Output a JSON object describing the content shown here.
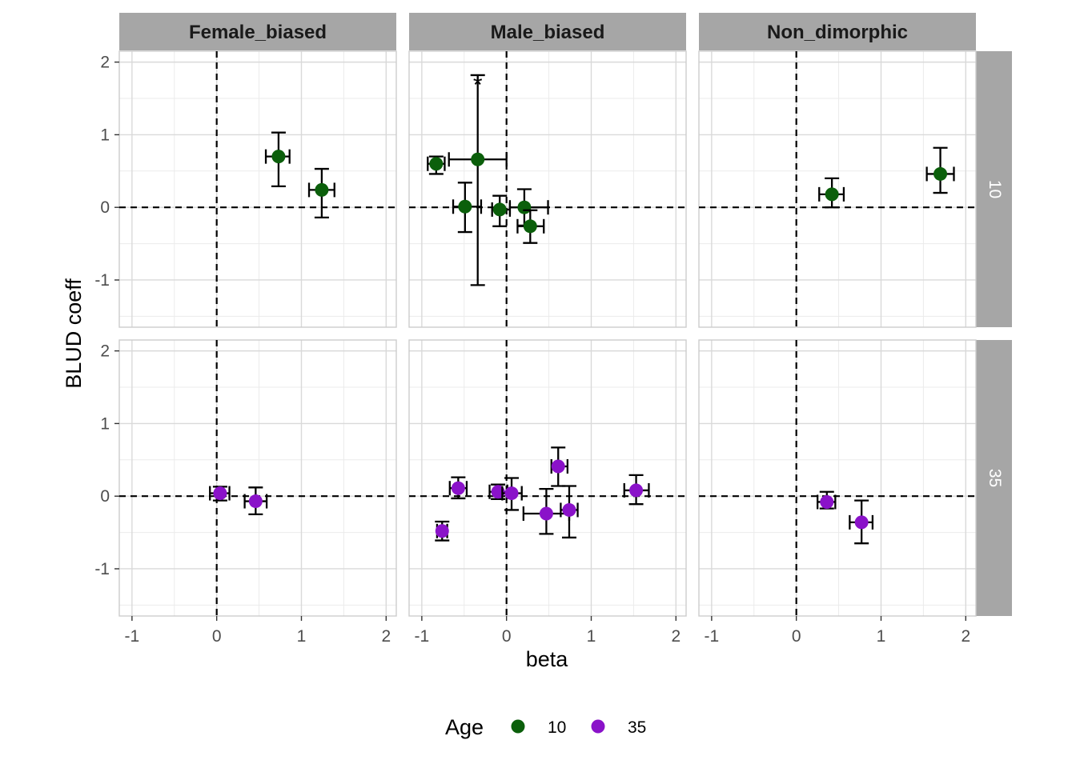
{
  "chart_data": {
    "type": "scatter",
    "xlabel": "beta",
    "ylabel": "BLUD coeff",
    "xlim": [
      -1.15,
      2.12
    ],
    "ylim": [
      -1.65,
      2.15
    ],
    "x_ticks": [
      -1,
      0,
      1,
      2
    ],
    "y_ticks": [
      -1,
      0,
      1,
      2
    ],
    "x_tick_labels": [
      "-1",
      "0",
      "1",
      "2"
    ],
    "y_tick_labels": [
      "-1",
      "0",
      "1",
      "2"
    ],
    "reference_lines": {
      "x": 0,
      "y": 0,
      "style": "dashed"
    },
    "grid": true,
    "columns": [
      "Female_biased",
      "Male_biased",
      "Non_dimorphic"
    ],
    "rows": [
      "10",
      "35"
    ],
    "legend": {
      "title": "Age",
      "position": "bottom",
      "entries": [
        {
          "label": "10",
          "color": "#0B5F0B"
        },
        {
          "label": "35",
          "color": "#8A12C9"
        }
      ]
    },
    "series": [
      {
        "name": "10",
        "color": "#0B5F0B"
      },
      {
        "name": "35",
        "color": "#8A12C9"
      }
    ],
    "points": [
      {
        "col": "Female_biased",
        "row": "10",
        "x": 0.73,
        "y": 0.7,
        "xlo": 0.58,
        "xhi": 0.86,
        "ylo": 0.29,
        "yhi": 1.03
      },
      {
        "col": "Female_biased",
        "row": "10",
        "x": 1.24,
        "y": 0.24,
        "xlo": 1.09,
        "xhi": 1.39,
        "ylo": -0.14,
        "yhi": 0.53
      },
      {
        "col": "Male_biased",
        "row": "10",
        "x": -0.83,
        "y": 0.6,
        "xlo": -0.93,
        "xhi": -0.73,
        "ylo": 0.46,
        "yhi": 0.7
      },
      {
        "col": "Male_biased",
        "row": "10",
        "x": -0.34,
        "y": 0.66,
        "xlo": -0.68,
        "xhi": 0.0,
        "ylo": -1.07,
        "yhi": 1.82,
        "label": "*"
      },
      {
        "col": "Male_biased",
        "row": "10",
        "x": -0.49,
        "y": 0.01,
        "xlo": -0.63,
        "xhi": -0.3,
        "ylo": -0.34,
        "yhi": 0.34
      },
      {
        "col": "Male_biased",
        "row": "10",
        "x": -0.08,
        "y": -0.03,
        "xlo": -0.17,
        "xhi": 0.04,
        "ylo": -0.26,
        "yhi": 0.16
      },
      {
        "col": "Male_biased",
        "row": "10",
        "x": 0.21,
        "y": 0.0,
        "xlo": 0.04,
        "xhi": 0.49,
        "ylo": -0.25,
        "yhi": 0.25
      },
      {
        "col": "Male_biased",
        "row": "10",
        "x": 0.28,
        "y": -0.26,
        "xlo": 0.13,
        "xhi": 0.44,
        "ylo": -0.49,
        "yhi": -0.04
      },
      {
        "col": "Non_dimorphic",
        "row": "10",
        "x": 0.42,
        "y": 0.18,
        "xlo": 0.27,
        "xhi": 0.56,
        "ylo": 0.0,
        "yhi": 0.4
      },
      {
        "col": "Non_dimorphic",
        "row": "10",
        "x": 1.7,
        "y": 0.46,
        "xlo": 1.54,
        "xhi": 1.86,
        "ylo": 0.2,
        "yhi": 0.82
      },
      {
        "col": "Female_biased",
        "row": "35",
        "x": 0.04,
        "y": 0.04,
        "xlo": -0.08,
        "xhi": 0.15,
        "ylo": -0.06,
        "yhi": 0.13
      },
      {
        "col": "Female_biased",
        "row": "35",
        "x": 0.46,
        "y": -0.07,
        "xlo": 0.33,
        "xhi": 0.59,
        "ylo": -0.25,
        "yhi": 0.12
      },
      {
        "col": "Male_biased",
        "row": "35",
        "x": -0.76,
        "y": -0.48,
        "xlo": -0.82,
        "xhi": -0.7,
        "ylo": -0.61,
        "yhi": -0.35
      },
      {
        "col": "Male_biased",
        "row": "35",
        "x": -0.57,
        "y": 0.11,
        "xlo": -0.67,
        "xhi": -0.47,
        "ylo": -0.03,
        "yhi": 0.26
      },
      {
        "col": "Male_biased",
        "row": "35",
        "x": -0.1,
        "y": 0.06,
        "xlo": -0.2,
        "xhi": 0.01,
        "ylo": -0.04,
        "yhi": 0.16
      },
      {
        "col": "Male_biased",
        "row": "35",
        "x": 0.06,
        "y": 0.04,
        "xlo": -0.05,
        "xhi": 0.18,
        "ylo": -0.19,
        "yhi": 0.25
      },
      {
        "col": "Male_biased",
        "row": "35",
        "x": 0.47,
        "y": -0.24,
        "xlo": 0.2,
        "xhi": 0.74,
        "ylo": -0.52,
        "yhi": 0.1
      },
      {
        "col": "Male_biased",
        "row": "35",
        "x": 0.61,
        "y": 0.41,
        "xlo": 0.53,
        "xhi": 0.72,
        "ylo": 0.14,
        "yhi": 0.67
      },
      {
        "col": "Male_biased",
        "row": "35",
        "x": 0.74,
        "y": -0.19,
        "xlo": 0.64,
        "xhi": 0.84,
        "ylo": -0.57,
        "yhi": 0.14
      },
      {
        "col": "Male_biased",
        "row": "35",
        "x": 1.53,
        "y": 0.08,
        "xlo": 1.39,
        "xhi": 1.68,
        "ylo": -0.11,
        "yhi": 0.29
      },
      {
        "col": "Non_dimorphic",
        "row": "35",
        "x": 0.36,
        "y": -0.08,
        "xlo": 0.25,
        "xhi": 0.46,
        "ylo": -0.17,
        "yhi": 0.06
      },
      {
        "col": "Non_dimorphic",
        "row": "35",
        "x": 0.77,
        "y": -0.36,
        "xlo": 0.63,
        "xhi": 0.9,
        "ylo": -0.65,
        "yhi": -0.06
      }
    ]
  }
}
